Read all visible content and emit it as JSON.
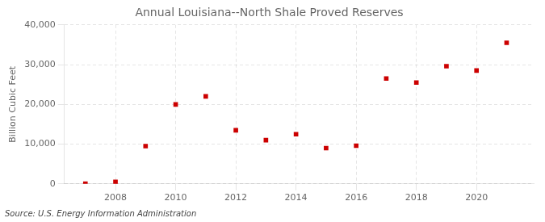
{
  "chart_data": {
    "type": "scatter",
    "title": "Annual Louisiana--North Shale Proved Reserves",
    "ylabel": "Billion Cubic Feet",
    "source": "Source: U.S. Energy Information Administration",
    "x": [
      2007,
      2008,
      2009,
      2010,
      2011,
      2012,
      2013,
      2014,
      2015,
      2016,
      2017,
      2018,
      2019,
      2020,
      2021
    ],
    "values": [
      30,
      500,
      9500,
      20000,
      22000,
      13500,
      11000,
      12500,
      9000,
      9600,
      26500,
      25500,
      29600,
      28500,
      35500
    ],
    "color": "#cc0000",
    "marker": "square",
    "xlim": [
      2006.3,
      2021.9
    ],
    "xticks": [
      2008,
      2010,
      2012,
      2014,
      2016,
      2018,
      2020
    ],
    "ylim": [
      0,
      40000
    ],
    "yticks": [
      0,
      {
        "value": 10000,
        "label": "10,000"
      },
      {
        "value": 20000,
        "label": "20,000"
      },
      {
        "value": 30000,
        "label": "30,000"
      },
      {
        "value": 40000,
        "label": "40,000"
      }
    ],
    "grid": true
  }
}
